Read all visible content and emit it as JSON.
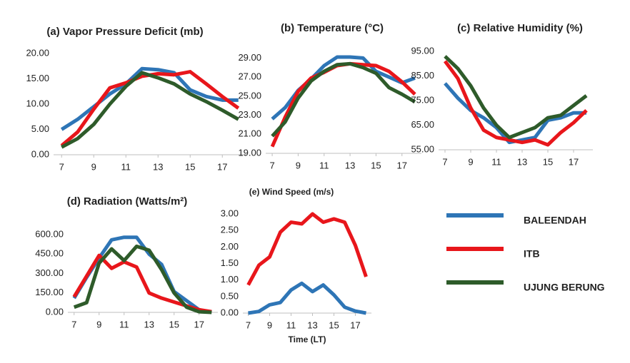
{
  "chart_data": [
    {
      "type": "line",
      "title": "(a) Vapor Pressure Deficit (mb)",
      "x": [
        7,
        8,
        9,
        10,
        11,
        12,
        13,
        14,
        15,
        16,
        17,
        18
      ],
      "xlim": [
        6.5,
        18.5
      ],
      "xticks": [
        7,
        9,
        11,
        13,
        15,
        17
      ],
      "ylim": [
        0,
        20
      ],
      "yticks": [
        {
          "value": 0,
          "label": "0.00"
        },
        {
          "value": 5,
          "label": "5.00"
        },
        {
          "value": 10,
          "label": "10.00"
        },
        {
          "value": 15,
          "label": "15.00"
        },
        {
          "value": 20,
          "label": "20.00"
        }
      ],
      "series": [
        {
          "name": "BALEENDAH",
          "color": "#2e75b6",
          "values": [
            5,
            7,
            9.5,
            12,
            14,
            17,
            16.8,
            16.2,
            12.8,
            11.5,
            10.8,
            10.8
          ]
        },
        {
          "name": "ITB",
          "color": "#e8161b",
          "values": [
            1.8,
            4.5,
            9,
            13.2,
            14.2,
            15.5,
            16,
            15.8,
            16.4,
            14,
            11.5,
            9.2
          ]
        },
        {
          "name": "UJUNG BERUNG",
          "color": "#2e5b2a",
          "values": [
            1.5,
            3.2,
            6,
            10,
            13.5,
            16.2,
            15.2,
            14,
            12,
            10.5,
            8.8,
            7
          ]
        }
      ]
    },
    {
      "type": "line",
      "title": "(b) Temperature (°C)",
      "x": [
        7,
        8,
        9,
        10,
        11,
        12,
        13,
        14,
        15,
        16,
        17,
        18
      ],
      "xlim": [
        6.5,
        18.5
      ],
      "xticks": [
        7,
        9,
        11,
        13,
        15,
        17
      ],
      "ylim": [
        19,
        30
      ],
      "yticks": [
        {
          "value": 19,
          "label": "19.00"
        },
        {
          "value": 21,
          "label": "21.00"
        },
        {
          "value": 23,
          "label": "23.00"
        },
        {
          "value": 25,
          "label": "25.00"
        },
        {
          "value": 27,
          "label": "27.00"
        },
        {
          "value": 29,
          "label": "29.00"
        }
      ],
      "series": [
        {
          "name": "BALEENDAH",
          "color": "#2e75b6",
          "values": [
            22.6,
            23.8,
            25.6,
            26.8,
            28.2,
            29.1,
            29.1,
            29,
            27.6,
            27,
            26.4,
            26.9
          ]
        },
        {
          "name": "ITB",
          "color": "#e8161b",
          "values": [
            19.7,
            22.8,
            25.5,
            26.9,
            27.5,
            28.2,
            28.4,
            28.3,
            28.2,
            27.6,
            26.5,
            25.2
          ]
        },
        {
          "name": "UJUNG BERUNG",
          "color": "#2e5b2a",
          "values": [
            20.8,
            22.3,
            24.8,
            26.6,
            27.6,
            28.3,
            28.4,
            28,
            27.4,
            25.9,
            25.2,
            24.4
          ]
        }
      ]
    },
    {
      "type": "line",
      "title": "(c) Relative Humidity (%)",
      "x": [
        7,
        8,
        9,
        10,
        11,
        12,
        13,
        14,
        15,
        16,
        17,
        18
      ],
      "xlim": [
        6.5,
        18.5
      ],
      "xticks": [
        7,
        9,
        11,
        13,
        15,
        17
      ],
      "ylim": [
        55,
        95
      ],
      "yticks": [
        {
          "value": 55,
          "label": "55.00"
        },
        {
          "value": 65,
          "label": "65.00"
        },
        {
          "value": 75,
          "label": "75.00"
        },
        {
          "value": 85,
          "label": "85.00"
        },
        {
          "value": 95,
          "label": "95.00"
        }
      ],
      "series": [
        {
          "name": "BALEENDAH",
          "color": "#2e75b6",
          "values": [
            82,
            76,
            71,
            68,
            64,
            58,
            59,
            60,
            67,
            68,
            70,
            70
          ]
        },
        {
          "name": "ITB",
          "color": "#e8161b",
          "values": [
            91,
            84,
            72,
            63,
            60,
            59,
            58,
            59,
            57,
            62,
            66,
            71
          ]
        },
        {
          "name": "UJUNG BERUNG",
          "color": "#2e5b2a",
          "values": [
            93,
            88,
            81,
            72,
            65,
            60,
            62,
            64,
            68,
            69,
            73,
            77
          ]
        }
      ]
    },
    {
      "type": "line",
      "title": "(d) Radiation (Watts/m²)",
      "x": [
        7,
        8,
        9,
        10,
        11,
        12,
        13,
        14,
        15,
        16,
        17,
        18
      ],
      "xlim": [
        6.5,
        18.5
      ],
      "xticks": [
        7,
        9,
        11,
        13,
        15,
        17
      ],
      "ylim": [
        0,
        650
      ],
      "yticks": [
        {
          "value": 0,
          "label": "0.00"
        },
        {
          "value": 150,
          "label": "150.00"
        },
        {
          "value": 300,
          "label": "300.00"
        },
        {
          "value": 450,
          "label": "450.00"
        },
        {
          "value": 600,
          "label": "600.00"
        }
      ],
      "series": [
        {
          "name": "BALEENDAH",
          "color": "#2e75b6",
          "values": [
            110,
            270,
            420,
            560,
            580,
            580,
            450,
            370,
            160,
            90,
            20,
            0
          ]
        },
        {
          "name": "ITB",
          "color": "#e8161b",
          "values": [
            120,
            280,
            440,
            340,
            390,
            350,
            150,
            110,
            80,
            50,
            20,
            5
          ]
        },
        {
          "name": "UJUNG BERUNG",
          "color": "#2e5b2a",
          "values": [
            40,
            75,
            380,
            490,
            400,
            510,
            480,
            330,
            150,
            40,
            5,
            0
          ]
        }
      ]
    },
    {
      "type": "line",
      "title": "(e) Wind Speed (m/s)",
      "x_label": "Time (LT)",
      "x": [
        7,
        8,
        9,
        10,
        11,
        12,
        13,
        14,
        15,
        16,
        17,
        18
      ],
      "xlim": [
        6.5,
        18.5
      ],
      "xticks": [
        7,
        9,
        11,
        13,
        15,
        17
      ],
      "ylim": [
        0,
        3
      ],
      "yticks": [
        {
          "value": 0,
          "label": "0.00"
        },
        {
          "value": 0.5,
          "label": "0.50"
        },
        {
          "value": 1,
          "label": "1.00"
        },
        {
          "value": 1.5,
          "label": "1.50"
        },
        {
          "value": 2,
          "label": "2.00"
        },
        {
          "value": 2.5,
          "label": "2.50"
        },
        {
          "value": 3,
          "label": "3.00"
        }
      ],
      "series": [
        {
          "name": "BALEENDAH",
          "color": "#2e75b6",
          "values": [
            0,
            0.05,
            0.25,
            0.32,
            0.7,
            0.9,
            0.65,
            0.85,
            0.55,
            0.18,
            0.06,
            0
          ]
        },
        {
          "name": "ITB",
          "color": "#e8161b",
          "values": [
            0.85,
            1.45,
            1.7,
            2.45,
            2.75,
            2.7,
            3.0,
            2.75,
            2.85,
            2.75,
            2.05,
            1.1
          ]
        }
      ]
    }
  ]
}
